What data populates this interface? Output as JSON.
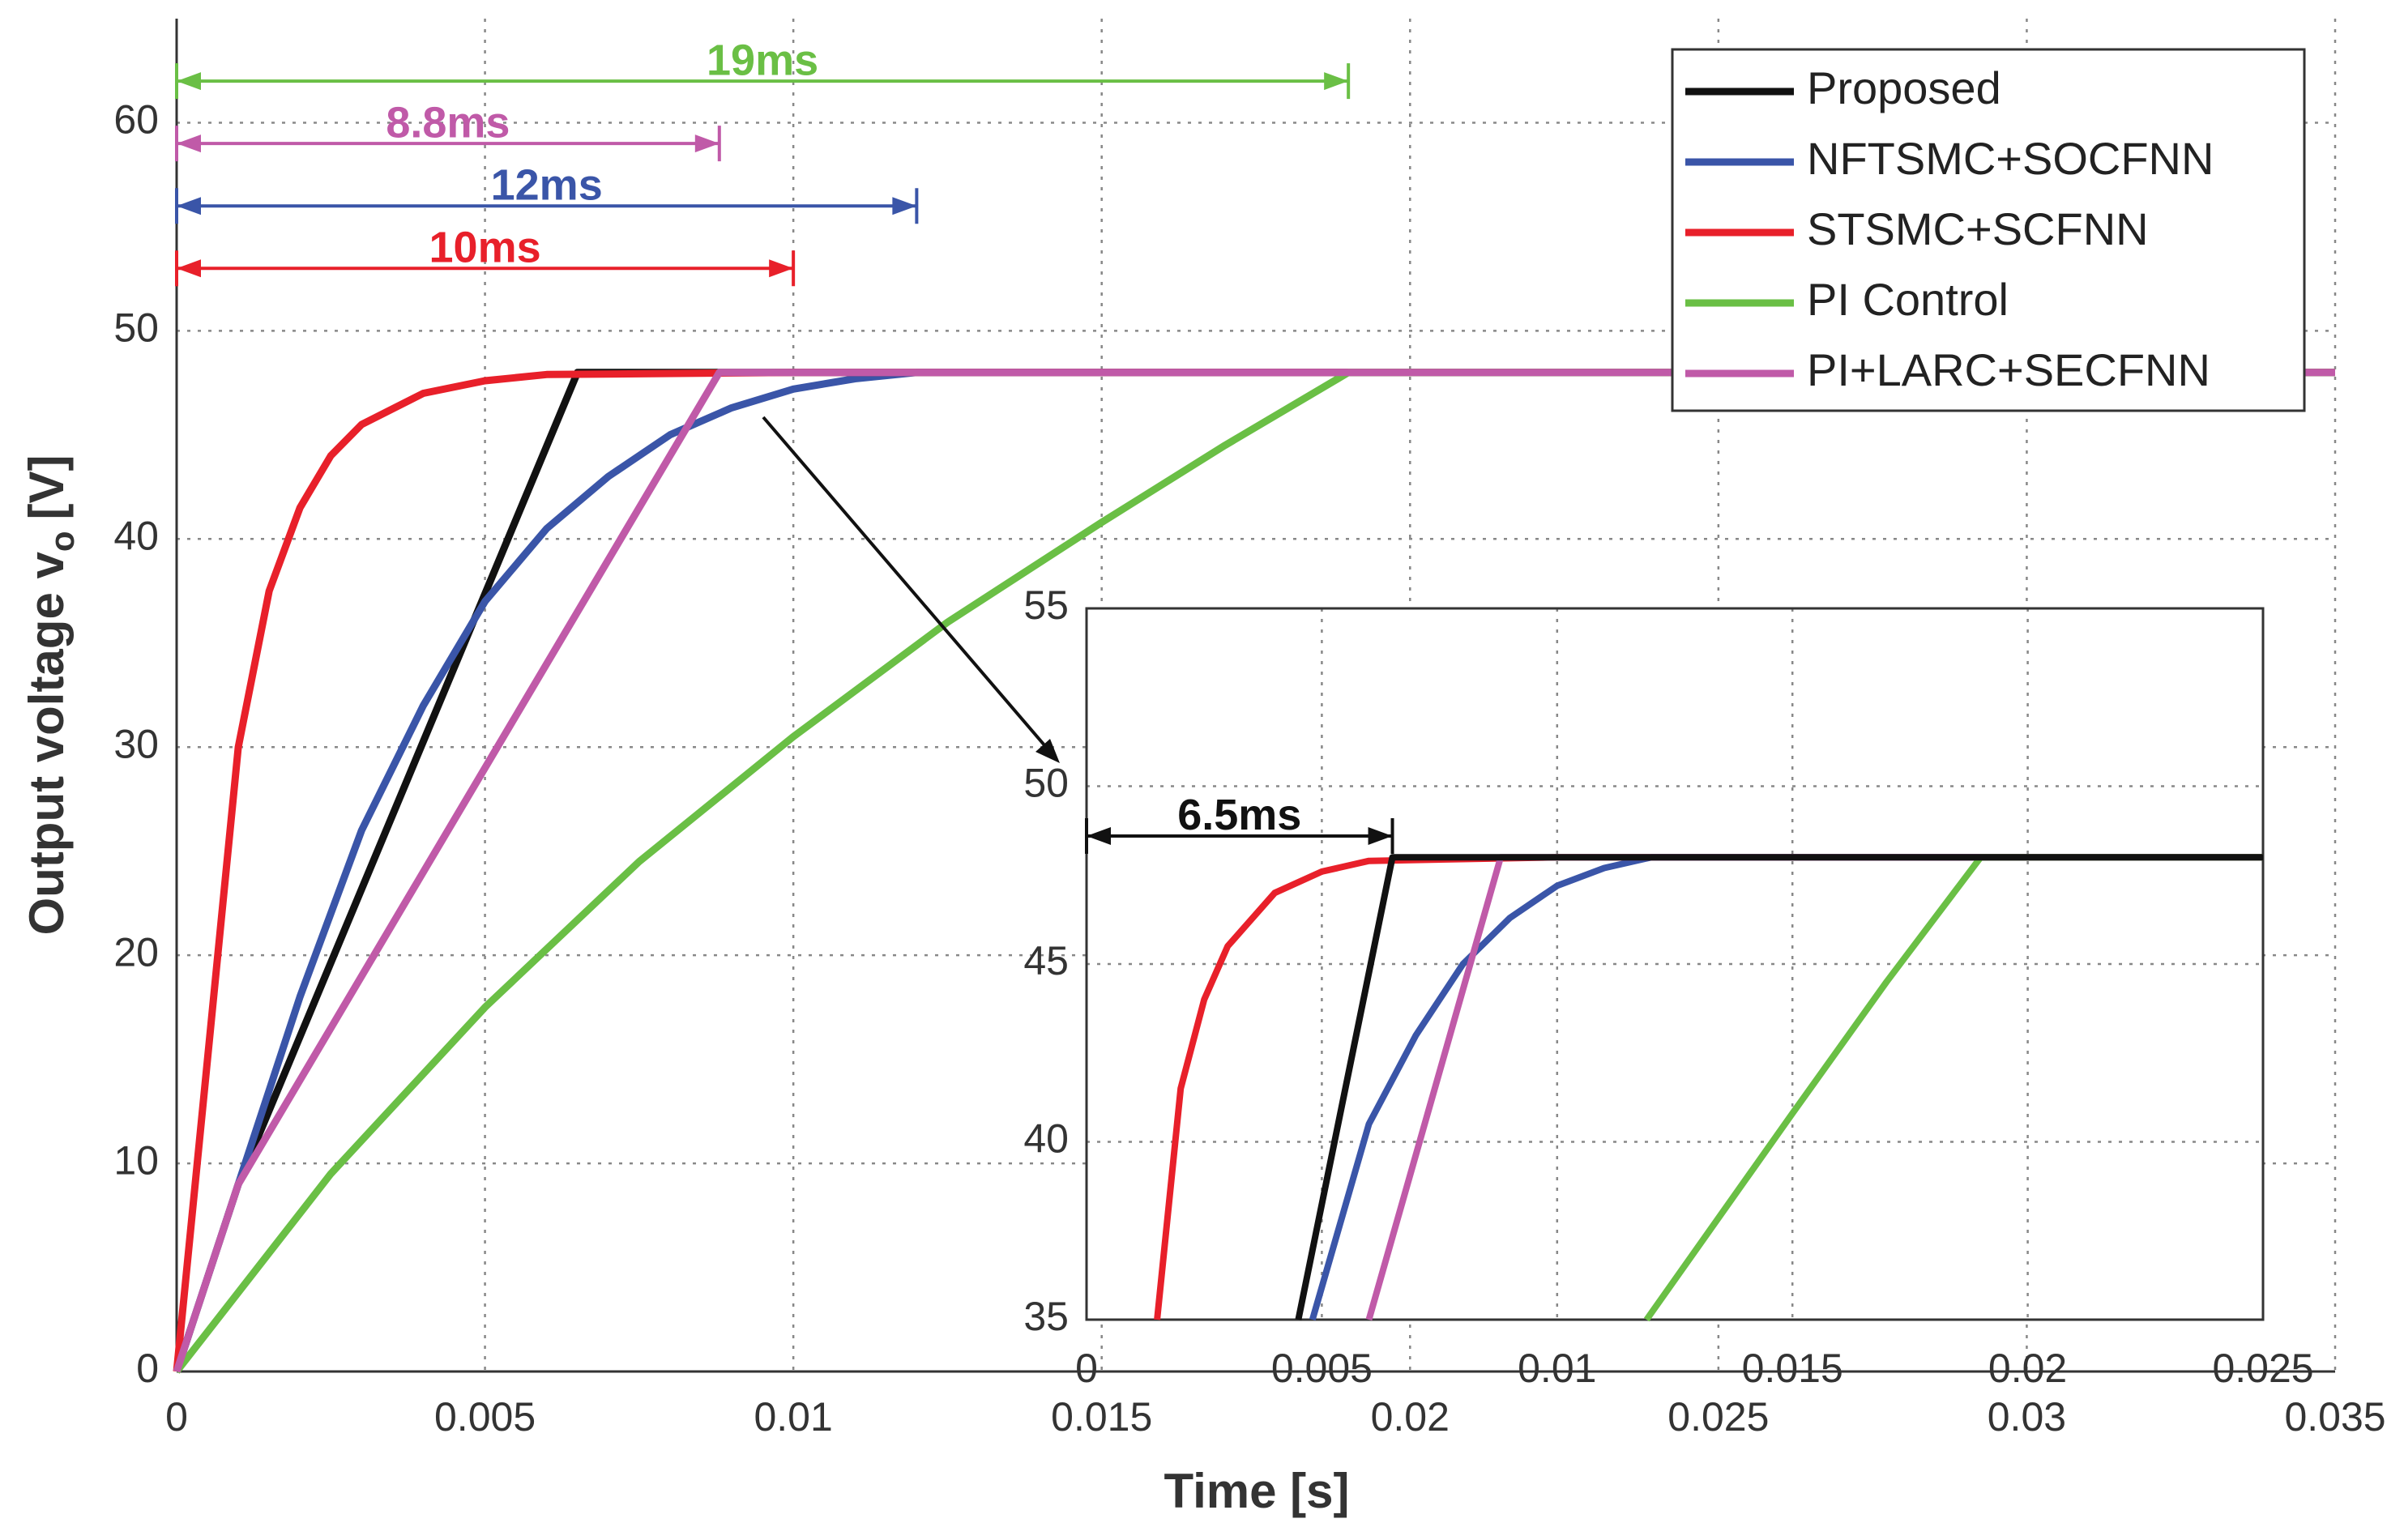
{
  "chart_data": [
    {
      "type": "line",
      "xlabel": "Time [s]",
      "ylabel": [
        "Output voltage v",
        "o",
        "[V]"
      ],
      "xlim": [
        0,
        0.035
      ],
      "ylim": [
        0,
        65
      ],
      "xticks": [
        0,
        0.005,
        0.01,
        0.015,
        0.02,
        0.025,
        0.03,
        0.035
      ],
      "yticks": [
        0,
        10,
        20,
        30,
        40,
        50,
        60
      ],
      "grid": true,
      "legend": "upper right",
      "series": [
        {
          "name": "Proposed",
          "color": "#111111",
          "x": [
            0,
            0.001,
            0.0065,
            0.035
          ],
          "values": [
            0,
            9,
            48,
            48
          ]
        },
        {
          "name": "NFTSMC+SOCFNN",
          "color": "#3a55a8",
          "x": [
            0,
            0.001,
            0.002,
            0.003,
            0.004,
            0.005,
            0.006,
            0.007,
            0.008,
            0.009,
            0.01,
            0.011,
            0.012,
            0.035
          ],
          "values": [
            0,
            9,
            18,
            26,
            32,
            37,
            40.5,
            43,
            45,
            46.3,
            47.2,
            47.7,
            48,
            48
          ]
        },
        {
          "name": "STSMC+SCFNN",
          "color": "#e8202a",
          "x": [
            0,
            0.0005,
            0.001,
            0.0015,
            0.002,
            0.0025,
            0.003,
            0.004,
            0.005,
            0.006,
            0.01,
            0.035
          ],
          "values": [
            0,
            15,
            30,
            37.5,
            41.5,
            44,
            45.5,
            47,
            47.6,
            47.9,
            48,
            48
          ]
        },
        {
          "name": "PI Control",
          "color": "#6abf45",
          "x": [
            0,
            0.0025,
            0.005,
            0.0075,
            0.01,
            0.0125,
            0.015,
            0.017,
            0.019,
            0.035
          ],
          "values": [
            0,
            9.5,
            17.5,
            24.5,
            30.5,
            36,
            40.8,
            44.5,
            48,
            48
          ]
        },
        {
          "name": "PI+LARC+SECFNN",
          "color": "#c05aa8",
          "x": [
            0,
            0.001,
            0.0088,
            0.035
          ],
          "values": [
            0,
            9,
            48,
            48
          ]
        }
      ],
      "annotations": [
        {
          "text": "19ms",
          "color": "#6abf45",
          "x": [
            0,
            0.019
          ],
          "y": 62
        },
        {
          "text": "8.8ms",
          "color": "#c05aa8",
          "x": [
            0,
            0.0088
          ],
          "y": 59
        },
        {
          "text": "12ms",
          "color": "#3a55a8",
          "x": [
            0,
            0.012
          ],
          "y": 56
        },
        {
          "text": "10ms",
          "color": "#e8202a",
          "x": [
            0,
            0.01
          ],
          "y": 53
        }
      ]
    },
    {
      "type": "line",
      "xlim": [
        0,
        0.025
      ],
      "ylim": [
        35,
        55
      ],
      "xticks": [
        0,
        0.005,
        0.01,
        0.015,
        0.02,
        0.025
      ],
      "yticks": [
        35,
        40,
        45,
        50,
        55
      ],
      "grid": true,
      "series": [
        {
          "color": "#e8202a",
          "x": [
            0.0015,
            0.002,
            0.0025,
            0.003,
            0.004,
            0.005,
            0.006,
            0.01,
            0.025
          ],
          "values": [
            35,
            41.5,
            44,
            45.5,
            47,
            47.6,
            47.9,
            48,
            48
          ]
        },
        {
          "color": "#3a55a8",
          "x": [
            0.0048,
            0.006,
            0.007,
            0.008,
            0.009,
            0.01,
            0.011,
            0.012,
            0.025
          ],
          "values": [
            35,
            40.5,
            43,
            45,
            46.3,
            47.2,
            47.7,
            48,
            48
          ]
        },
        {
          "color": "#c05aa8",
          "x": [
            0.006,
            0.0088,
            0.025
          ],
          "values": [
            35,
            48,
            48
          ]
        },
        {
          "color": "#6abf45",
          "x": [
            0.0119,
            0.015,
            0.017,
            0.019,
            0.025
          ],
          "values": [
            35,
            40.8,
            44.5,
            48,
            48
          ]
        },
        {
          "color": "#111111",
          "x": [
            0.0045,
            0.0065,
            0.025
          ],
          "values": [
            35,
            48,
            48
          ]
        }
      ],
      "annotations": [
        {
          "text": "6.5ms",
          "color": "#111111",
          "x": [
            0,
            0.0065
          ],
          "y": 48.6
        }
      ]
    }
  ]
}
